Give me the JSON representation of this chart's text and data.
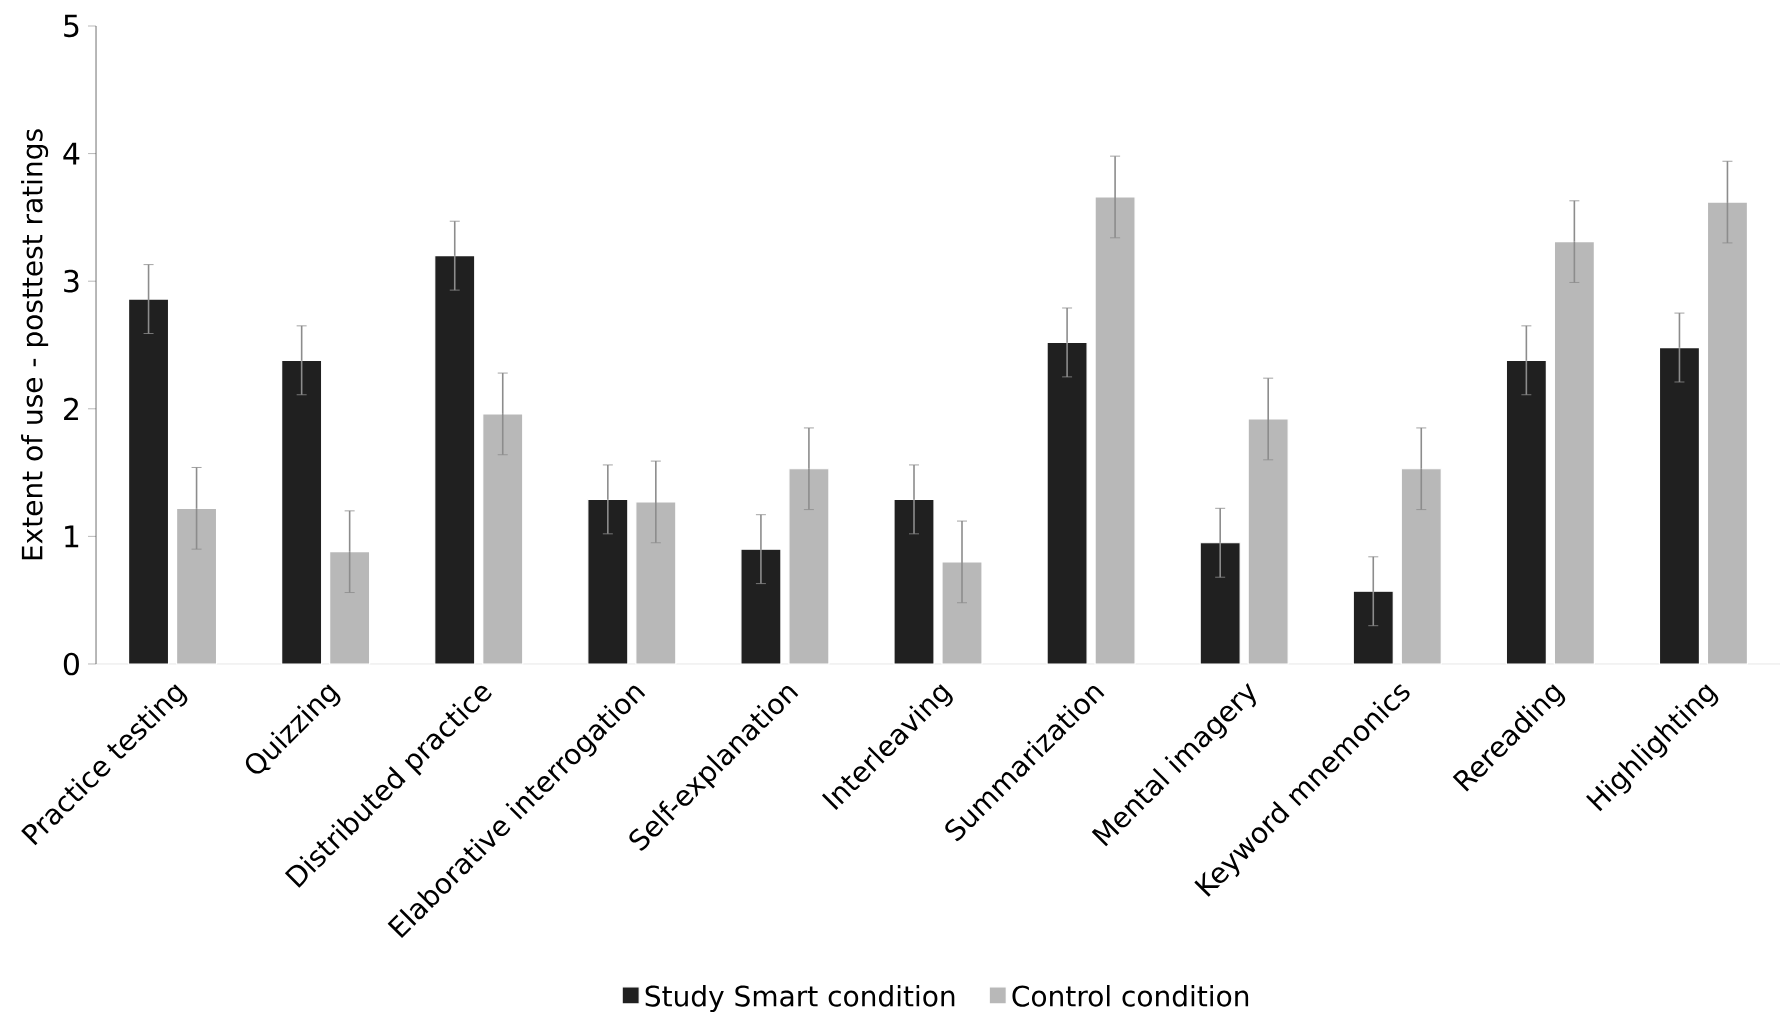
{
  "chart_data": {
    "type": "bar",
    "ylabel": "Extent of use - posttest ratings",
    "categories": [
      "Practice testing",
      "Quizzing",
      "Distributed practice",
      "Elaborative interrogation",
      "Self-explanation",
      "Interleaving",
      "Summarization",
      "Mental imagery",
      "Keyword mnemonics",
      "Rereading",
      "Highlighting"
    ],
    "series": [
      {
        "name": "Study Smart condition",
        "color": "#202020",
        "values": [
          2.86,
          2.38,
          3.2,
          1.29,
          0.9,
          1.29,
          2.52,
          0.95,
          0.57,
          2.38,
          2.48
        ],
        "errors": [
          0.27,
          0.27,
          0.27,
          0.27,
          0.27,
          0.27,
          0.27,
          0.27,
          0.27,
          0.27,
          0.27
        ]
      },
      {
        "name": "Control condition",
        "color": "#b8b8b8",
        "values": [
          1.22,
          0.88,
          1.96,
          1.27,
          1.53,
          0.8,
          3.66,
          1.92,
          1.53,
          3.31,
          3.62
        ],
        "errors": [
          0.32,
          0.32,
          0.32,
          0.32,
          0.32,
          0.32,
          0.32,
          0.32,
          0.32,
          0.32,
          0.32
        ]
      }
    ],
    "ylim": [
      0,
      5
    ],
    "yticks": [
      0,
      1,
      2,
      3,
      4,
      5
    ],
    "legend": "bottom",
    "grid": false
  }
}
